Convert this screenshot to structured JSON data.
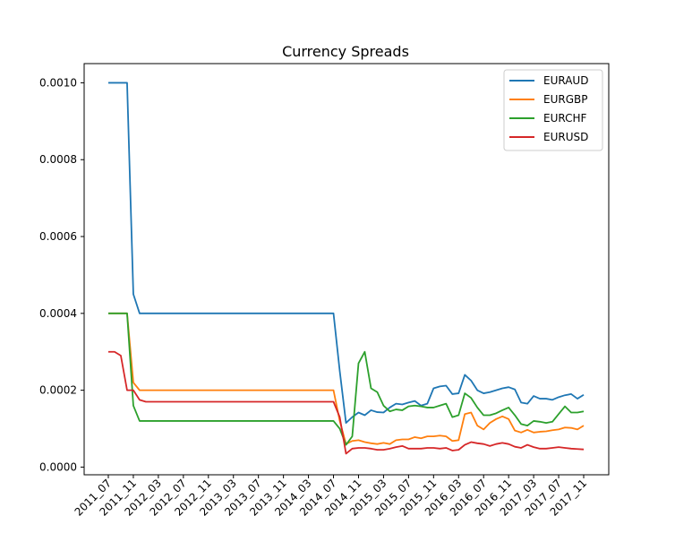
{
  "chart_data": {
    "type": "line",
    "title": "Currency Spreads",
    "xlabel": "",
    "ylabel": "",
    "ylim": [
      -2e-05,
      0.00105
    ],
    "yticks": [
      "0.0000",
      "0.0002",
      "0.0004",
      "0.0006",
      "0.0008",
      "0.0010"
    ],
    "ytick_values": [
      0.0,
      0.0002,
      0.0004,
      0.0006,
      0.0008,
      0.001
    ],
    "x": [
      "2011_07",
      "2011_08",
      "2011_09",
      "2011_10",
      "2011_11",
      "2011_12",
      "2012_01",
      "2012_02",
      "2012_03",
      "2012_04",
      "2012_05",
      "2012_06",
      "2012_07",
      "2012_08",
      "2012_09",
      "2012_10",
      "2012_11",
      "2012_12",
      "2013_01",
      "2013_02",
      "2013_03",
      "2013_04",
      "2013_05",
      "2013_06",
      "2013_07",
      "2013_08",
      "2013_09",
      "2013_10",
      "2013_11",
      "2013_12",
      "2014_01",
      "2014_02",
      "2014_03",
      "2014_04",
      "2014_05",
      "2014_06",
      "2014_07",
      "2014_08",
      "2014_09",
      "2014_10",
      "2014_11",
      "2014_12",
      "2015_01",
      "2015_02",
      "2015_03",
      "2015_04",
      "2015_05",
      "2015_06",
      "2015_07",
      "2015_08",
      "2015_09",
      "2015_10",
      "2015_11",
      "2015_12",
      "2016_01",
      "2016_02",
      "2016_03",
      "2016_04",
      "2016_05",
      "2016_06",
      "2016_07",
      "2016_08",
      "2016_09",
      "2016_10",
      "2016_11",
      "2016_12",
      "2017_01",
      "2017_02",
      "2017_03",
      "2017_04",
      "2017_05",
      "2017_06",
      "2017_07",
      "2017_08",
      "2017_09",
      "2017_10",
      "2017_11"
    ],
    "xtick_labels": [
      "2011_07",
      "2011_11",
      "2012_03",
      "2012_07",
      "2012_11",
      "2013_03",
      "2013_07",
      "2013_11",
      "2014_03",
      "2014_07",
      "2014_11",
      "2015_03",
      "2015_07",
      "2015_11",
      "2016_03",
      "2016_07",
      "2016_11",
      "2017_03",
      "2017_07",
      "2017_11"
    ],
    "legend_position": "top-right",
    "grid": false,
    "series": [
      {
        "name": "EURAUD",
        "color": "#1f77b4",
        "values": [
          0.001,
          0.001,
          0.001,
          0.001,
          0.00045,
          0.0004,
          0.0004,
          0.0004,
          0.0004,
          0.0004,
          0.0004,
          0.0004,
          0.0004,
          0.0004,
          0.0004,
          0.0004,
          0.0004,
          0.0004,
          0.0004,
          0.0004,
          0.0004,
          0.0004,
          0.0004,
          0.0004,
          0.0004,
          0.0004,
          0.0004,
          0.0004,
          0.0004,
          0.0004,
          0.0004,
          0.0004,
          0.0004,
          0.0004,
          0.0004,
          0.0004,
          0.0004,
          0.00025,
          0.000115,
          0.00013,
          0.000142,
          0.000135,
          0.000148,
          0.000143,
          0.000142,
          0.000155,
          0.000165,
          0.000163,
          0.000168,
          0.000172,
          0.00016,
          0.000165,
          0.000205,
          0.00021,
          0.000212,
          0.00019,
          0.000192,
          0.00024,
          0.000225,
          0.0002,
          0.000192,
          0.000195,
          0.0002,
          0.000205,
          0.000208,
          0.000202,
          0.000168,
          0.000165,
          0.000185,
          0.000178,
          0.000178,
          0.000175,
          0.000182,
          0.000187,
          0.00019,
          0.000178,
          0.000188
        ]
      },
      {
        "name": "EURGBP",
        "color": "#ff7f0e",
        "values": [
          0.0004,
          0.0004,
          0.0004,
          0.0004,
          0.00022,
          0.0002,
          0.0002,
          0.0002,
          0.0002,
          0.0002,
          0.0002,
          0.0002,
          0.0002,
          0.0002,
          0.0002,
          0.0002,
          0.0002,
          0.0002,
          0.0002,
          0.0002,
          0.0002,
          0.0002,
          0.0002,
          0.0002,
          0.0002,
          0.0002,
          0.0002,
          0.0002,
          0.0002,
          0.0002,
          0.0002,
          0.0002,
          0.0002,
          0.0002,
          0.0002,
          0.0002,
          0.0002,
          0.00012,
          6e-05,
          6.8e-05,
          7e-05,
          6.5e-05,
          6.2e-05,
          6e-05,
          6.3e-05,
          6e-05,
          7e-05,
          7.2e-05,
          7.2e-05,
          7.8e-05,
          7.5e-05,
          8e-05,
          8e-05,
          8.2e-05,
          8e-05,
          6.8e-05,
          7e-05,
          0.000138,
          0.000142,
          0.000108,
          9.8e-05,
          0.000115,
          0.000125,
          0.000132,
          0.000125,
          9.5e-05,
          9e-05,
          9.7e-05,
          9e-05,
          9.2e-05,
          9.3e-05,
          9.6e-05,
          9.8e-05,
          0.000103,
          0.000102,
          9.8e-05,
          0.000108
        ]
      },
      {
        "name": "EURCHF",
        "color": "#2ca02c",
        "values": [
          0.0004,
          0.0004,
          0.0004,
          0.0004,
          0.00016,
          0.00012,
          0.00012,
          0.00012,
          0.00012,
          0.00012,
          0.00012,
          0.00012,
          0.00012,
          0.00012,
          0.00012,
          0.00012,
          0.00012,
          0.00012,
          0.00012,
          0.00012,
          0.00012,
          0.00012,
          0.00012,
          0.00012,
          0.00012,
          0.00012,
          0.00012,
          0.00012,
          0.00012,
          0.00012,
          0.00012,
          0.00012,
          0.00012,
          0.00012,
          0.00012,
          0.00012,
          0.00012,
          0.0001,
          5.8e-05,
          8e-05,
          0.00027,
          0.0003,
          0.000205,
          0.000195,
          0.00016,
          0.000145,
          0.00015,
          0.000148,
          0.000158,
          0.00016,
          0.000158,
          0.000155,
          0.000155,
          0.00016,
          0.000165,
          0.00013,
          0.000135,
          0.000192,
          0.00018,
          0.000155,
          0.000135,
          0.000135,
          0.00014,
          0.000148,
          0.000155,
          0.000135,
          0.000112,
          0.000108,
          0.00012,
          0.000118,
          0.000115,
          0.000118,
          0.000138,
          0.000158,
          0.000142,
          0.000142,
          0.000145
        ]
      },
      {
        "name": "EURUSD",
        "color": "#d62728",
        "values": [
          0.0003,
          0.0003,
          0.00029,
          0.0002,
          0.0002,
          0.000175,
          0.00017,
          0.00017,
          0.00017,
          0.00017,
          0.00017,
          0.00017,
          0.00017,
          0.00017,
          0.00017,
          0.00017,
          0.00017,
          0.00017,
          0.00017,
          0.00017,
          0.00017,
          0.00017,
          0.00017,
          0.00017,
          0.00017,
          0.00017,
          0.00017,
          0.00017,
          0.00017,
          0.00017,
          0.00017,
          0.00017,
          0.00017,
          0.00017,
          0.00017,
          0.00017,
          0.00017,
          0.00013,
          3.5e-05,
          4.8e-05,
          5e-05,
          5e-05,
          4.8e-05,
          4.5e-05,
          4.5e-05,
          4.8e-05,
          5.2e-05,
          5.5e-05,
          4.8e-05,
          4.8e-05,
          4.8e-05,
          5e-05,
          5e-05,
          4.8e-05,
          5e-05,
          4.3e-05,
          4.5e-05,
          5.8e-05,
          6.5e-05,
          6.2e-05,
          6e-05,
          5.5e-05,
          6e-05,
          6.3e-05,
          6e-05,
          5.3e-05,
          5e-05,
          5.8e-05,
          5.2e-05,
          4.8e-05,
          4.8e-05,
          5e-05,
          5.2e-05,
          5e-05,
          4.8e-05,
          4.7e-05,
          4.6e-05
        ]
      }
    ]
  }
}
